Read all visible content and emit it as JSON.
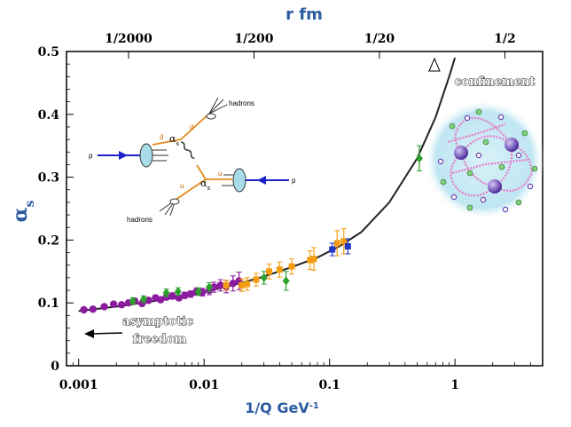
{
  "chart_data": {
    "type": "scatter",
    "title": "r fm",
    "xlabel": "1/Q GeV",
    "xlabel_sup": "-1",
    "ylabel": "α",
    "ylabel_sub": "s",
    "xscale": "log",
    "xlim": [
      0.0008,
      5
    ],
    "ylim": [
      0,
      0.5
    ],
    "x_ticks": [
      {
        "v": 0.001,
        "l": "0.001"
      },
      {
        "v": 0.01,
        "l": "0.01"
      },
      {
        "v": 0.1,
        "l": "0.1"
      },
      {
        "v": 1,
        "l": "1"
      }
    ],
    "y_ticks": [
      {
        "v": 0,
        "l": "0"
      },
      {
        "v": 0.1,
        "l": "0.1"
      },
      {
        "v": 0.2,
        "l": "0.2"
      },
      {
        "v": 0.3,
        "l": "0.3"
      },
      {
        "v": 0.4,
        "l": "0.4"
      },
      {
        "v": 0.5,
        "l": "0.5"
      }
    ],
    "top_ticks": [
      {
        "v": 0.0025,
        "l": "1/2000"
      },
      {
        "v": 0.025,
        "l": "1/200"
      },
      {
        "v": 0.25,
        "l": "1/20"
      },
      {
        "v": 2.5,
        "l": "1/2"
      }
    ],
    "curve": {
      "x": [
        0.001,
        0.002,
        0.004,
        0.008,
        0.012,
        0.02,
        0.03,
        0.05,
        0.08,
        0.12,
        0.18,
        0.3,
        0.5,
        0.7,
        0.9,
        1.0
      ],
      "y": [
        0.087,
        0.094,
        0.103,
        0.113,
        0.121,
        0.132,
        0.142,
        0.157,
        0.172,
        0.19,
        0.213,
        0.26,
        0.33,
        0.395,
        0.46,
        0.49
      ]
    },
    "series": [
      {
        "color": "#8b1a9e",
        "marker": "circle",
        "x": [
          0.0011,
          0.0013,
          0.0016,
          0.0019,
          0.0022,
          0.0025,
          0.0028,
          0.0032,
          0.0036,
          0.0041,
          0.0045,
          0.005,
          0.0056,
          0.0063,
          0.007,
          0.0078,
          0.0087,
          0.0097,
          0.011,
          0.012,
          0.0135,
          0.015,
          0.017,
          0.019
        ],
        "y": [
          0.089,
          0.09,
          0.094,
          0.098,
          0.097,
          0.1,
          0.103,
          0.099,
          0.104,
          0.108,
          0.105,
          0.109,
          0.111,
          0.108,
          0.112,
          0.114,
          0.118,
          0.117,
          0.12,
          0.125,
          0.128,
          0.126,
          0.131,
          0.135
        ],
        "err": [
          0.003,
          0.003,
          0.003,
          0.003,
          0.004,
          0.003,
          0.004,
          0.003,
          0.004,
          0.004,
          0.004,
          0.004,
          0.005,
          0.004,
          0.005,
          0.005,
          0.006,
          0.006,
          0.007,
          0.008,
          0.009,
          0.01,
          0.012,
          0.014
        ]
      },
      {
        "color": "#2ca02c",
        "marker": "diamond",
        "x": [
          0.0027,
          0.0033,
          0.005,
          0.0062,
          0.009,
          0.011,
          0.03,
          0.045,
          0.52
        ],
        "y": [
          0.103,
          0.106,
          0.116,
          0.118,
          0.118,
          0.125,
          0.14,
          0.135,
          0.33
        ],
        "err": [
          0.005,
          0.005,
          0.006,
          0.006,
          0.006,
          0.007,
          0.01,
          0.015,
          0.02
        ]
      },
      {
        "color": "#f39c12",
        "marker": "square",
        "x": [
          0.015,
          0.02,
          0.022,
          0.026,
          0.033,
          0.04,
          0.05,
          0.07,
          0.075,
          0.115,
          0.13
        ],
        "y": [
          0.128,
          0.128,
          0.13,
          0.137,
          0.15,
          0.153,
          0.158,
          0.168,
          0.17,
          0.195,
          0.198
        ],
        "err": [
          0.008,
          0.01,
          0.01,
          0.01,
          0.012,
          0.012,
          0.012,
          0.015,
          0.018,
          0.02,
          0.02
        ]
      },
      {
        "color": "#1f35c4",
        "marker": "square",
        "x": [
          0.105,
          0.14
        ],
        "y": [
          0.185,
          0.19
        ],
        "err": [
          0.01,
          0.012
        ]
      }
    ],
    "annotations": {
      "confinement": "confinement",
      "asymptotic_line1": "asymptotic",
      "asymptotic_line2": "freedom"
    },
    "inset": {
      "hadrons_top": "hadrons",
      "hadrons_bottom": "hadrons",
      "p_left": "p",
      "p_right": "p",
      "d_top": "d",
      "d_mid": "d",
      "u_mid": "u",
      "u_bottom": "u",
      "alpha_top": "α",
      "alpha_top_sub": "s",
      "alpha_bot": "α",
      "alpha_bot_sub": "s"
    },
    "colors": {
      "axis_label": "#2a5aa0",
      "curve": "#222222",
      "quark_line": "#e08a1e",
      "proton_line": "#1a22c8",
      "proton_blob": "#a8dce8"
    }
  }
}
